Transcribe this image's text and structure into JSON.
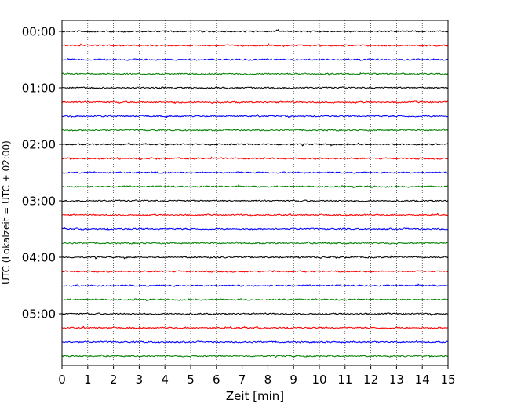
{
  "chart_data": {
    "type": "line",
    "title": "",
    "xlabel": "Zeit  [min]",
    "ylabel": "UTC (Lokalzeit = UTC + 02:00)",
    "xlim": [
      0,
      15
    ],
    "xticks": [
      "0",
      "1",
      "2",
      "3",
      "4",
      "5",
      "6",
      "7",
      "8",
      "9",
      "10",
      "11",
      "12",
      "13",
      "14",
      "15"
    ],
    "y_tick_labels": [
      "00:00",
      "01:00",
      "02:00",
      "03:00",
      "04:00",
      "05:00"
    ],
    "traces_per_hour": 4,
    "minutes_per_trace": 15,
    "trace_count": 24,
    "trace_colors": [
      "#000000",
      "#ff0000",
      "#0000ff",
      "#008000"
    ],
    "grid": "vertical dotted lines at each minute"
  }
}
